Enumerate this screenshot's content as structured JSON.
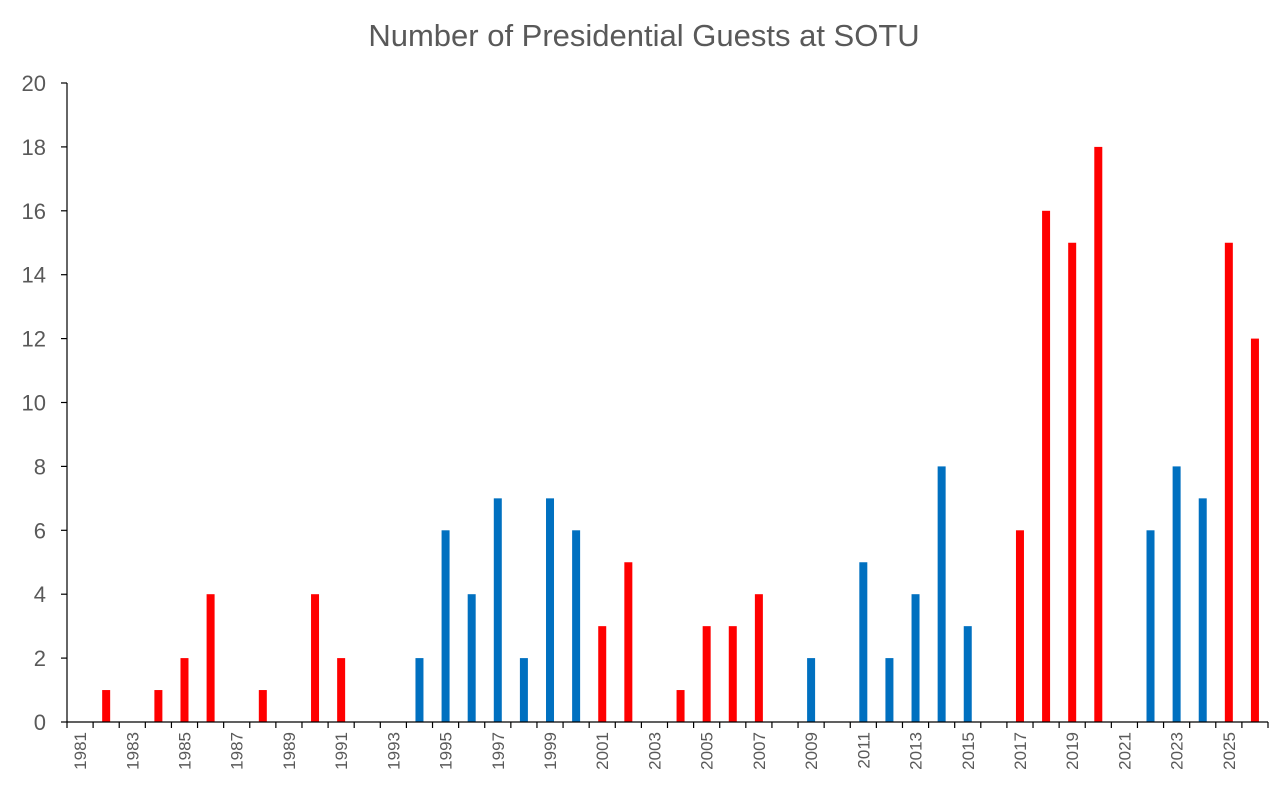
{
  "chart_data": {
    "type": "bar",
    "title": "Number of Presidential Guests at SOTU",
    "xlabel": "",
    "ylabel": "",
    "ylim": [
      0,
      20
    ],
    "yticks": [
      0,
      2,
      4,
      6,
      8,
      10,
      12,
      14,
      16,
      18,
      20
    ],
    "categories": [
      "1981",
      "1982",
      "1983",
      "1984",
      "1985",
      "1986",
      "1987",
      "1988",
      "1989",
      "1990",
      "1991",
      "1992",
      "1993",
      "1994",
      "1995",
      "1996",
      "1997",
      "1998",
      "1999",
      "2000",
      "2001",
      "2002",
      "2003",
      "2004",
      "2005",
      "2006",
      "2007",
      "2008",
      "2009",
      "2010",
      "2011",
      "2012",
      "2013",
      "2014",
      "2015",
      "2016",
      "2017",
      "2018",
      "2019",
      "2020",
      "2021",
      "2022",
      "2023",
      "2024",
      "2025",
      "2026"
    ],
    "xtick_labels": [
      "1981",
      "1983",
      "1985",
      "1987",
      "1989",
      "1991",
      "1993",
      "1995",
      "1997",
      "1999",
      "2001",
      "2003",
      "2005",
      "2007",
      "2009",
      "2011",
      "2013",
      "2015",
      "2017",
      "2019",
      "2021",
      "2023",
      "2025"
    ],
    "values": [
      0,
      1,
      0,
      1,
      2,
      4,
      0,
      1,
      0,
      4,
      2,
      0,
      0,
      2,
      6,
      4,
      7,
      2,
      7,
      6,
      3,
      5,
      0,
      1,
      3,
      3,
      4,
      0,
      2,
      0,
      5,
      2,
      4,
      8,
      3,
      0,
      6,
      16,
      15,
      18,
      0,
      6,
      8,
      7,
      15,
      12
    ],
    "party": [
      "",
      "R",
      "",
      "R",
      "R",
      "R",
      "",
      "R",
      "",
      "R",
      "R",
      "",
      "",
      "D",
      "D",
      "D",
      "D",
      "D",
      "D",
      "D",
      "R",
      "R",
      "",
      "R",
      "R",
      "R",
      "R",
      "",
      "D",
      "",
      "D",
      "D",
      "D",
      "D",
      "D",
      "",
      "R",
      "R",
      "R",
      "R",
      "",
      "D",
      "D",
      "D",
      "R",
      "R"
    ],
    "colors": {
      "R": "#ff0000",
      "D": "#0070c0",
      "axis": "#000000",
      "text": "#595959"
    },
    "grid": false,
    "legend": "none"
  }
}
